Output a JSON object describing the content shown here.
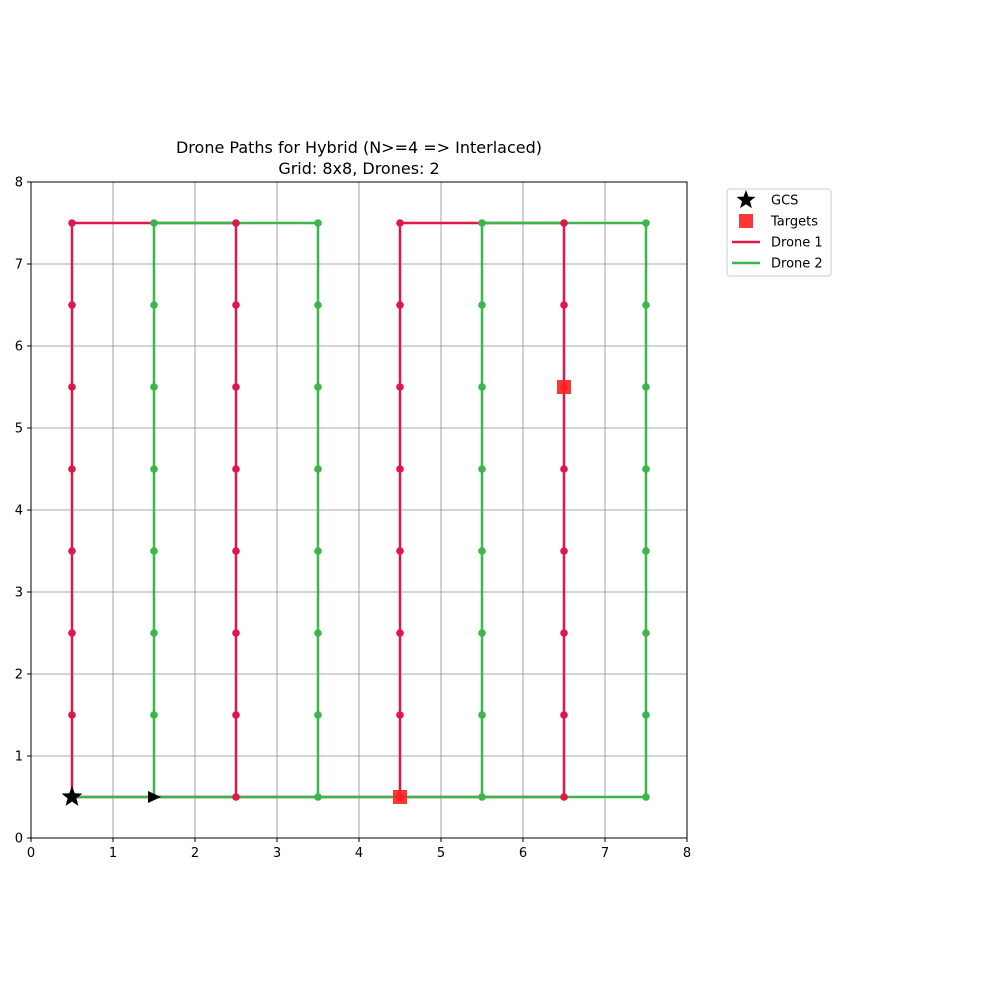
{
  "chart_data": {
    "type": "line",
    "title_lines": [
      "Drone Paths for Hybrid (N>=4 => Interlaced)",
      "Grid: 8x8, Drones: 2"
    ],
    "xlabel": "",
    "ylabel": "",
    "xlim": [
      0,
      8
    ],
    "ylim": [
      0,
      8
    ],
    "xticks": [
      0,
      1,
      2,
      3,
      4,
      5,
      6,
      7,
      8
    ],
    "yticks": [
      0,
      1,
      2,
      3,
      4,
      5,
      6,
      7,
      8
    ],
    "grid": true,
    "legend_position": "outside-top-right",
    "gcs": {
      "label": "GCS",
      "x": 0.5,
      "y": 0.5,
      "marker": "star",
      "color": "#000000"
    },
    "targets": {
      "label": "Targets",
      "color": "#ff2020",
      "points": [
        {
          "x": 4.5,
          "y": 0.5
        },
        {
          "x": 6.5,
          "y": 5.5
        }
      ]
    },
    "direction_marker": {
      "x": 1.5,
      "y": 0.5,
      "marker": "triangle-right",
      "color": "#000000"
    },
    "series": [
      {
        "name": "Drone 1",
        "color": "#e0174a",
        "path": [
          [
            0.5,
            0.5
          ],
          [
            0.5,
            7.5
          ],
          [
            2.5,
            7.5
          ],
          [
            2.5,
            0.5
          ],
          [
            4.5,
            0.5
          ],
          [
            4.5,
            7.5
          ],
          [
            6.5,
            7.5
          ],
          [
            6.5,
            0.5
          ],
          [
            4.5,
            0.5
          ],
          [
            0.5,
            0.5
          ]
        ],
        "waypoints": [
          [
            0.5,
            0.5
          ],
          [
            0.5,
            1.5
          ],
          [
            0.5,
            2.5
          ],
          [
            0.5,
            3.5
          ],
          [
            0.5,
            4.5
          ],
          [
            0.5,
            5.5
          ],
          [
            0.5,
            6.5
          ],
          [
            0.5,
            7.5
          ],
          [
            2.5,
            7.5
          ],
          [
            2.5,
            6.5
          ],
          [
            2.5,
            5.5
          ],
          [
            2.5,
            4.5
          ],
          [
            2.5,
            3.5
          ],
          [
            2.5,
            2.5
          ],
          [
            2.5,
            1.5
          ],
          [
            2.5,
            0.5
          ],
          [
            4.5,
            0.5
          ],
          [
            4.5,
            1.5
          ],
          [
            4.5,
            2.5
          ],
          [
            4.5,
            3.5
          ],
          [
            4.5,
            4.5
          ],
          [
            4.5,
            5.5
          ],
          [
            4.5,
            6.5
          ],
          [
            4.5,
            7.5
          ],
          [
            6.5,
            7.5
          ],
          [
            6.5,
            6.5
          ],
          [
            6.5,
            5.5
          ],
          [
            6.5,
            4.5
          ],
          [
            6.5,
            3.5
          ],
          [
            6.5,
            2.5
          ],
          [
            6.5,
            1.5
          ],
          [
            6.5,
            0.5
          ]
        ]
      },
      {
        "name": "Drone 2",
        "color": "#3cb54a",
        "path": [
          [
            0.5,
            0.5
          ],
          [
            1.5,
            0.5
          ],
          [
            1.5,
            7.5
          ],
          [
            3.5,
            7.5
          ],
          [
            3.5,
            0.5
          ],
          [
            5.5,
            0.5
          ],
          [
            5.5,
            7.5
          ],
          [
            7.5,
            7.5
          ],
          [
            7.5,
            0.5
          ],
          [
            0.5,
            0.5
          ]
        ],
        "waypoints": [
          [
            1.5,
            1.5
          ],
          [
            1.5,
            2.5
          ],
          [
            1.5,
            3.5
          ],
          [
            1.5,
            4.5
          ],
          [
            1.5,
            5.5
          ],
          [
            1.5,
            6.5
          ],
          [
            1.5,
            7.5
          ],
          [
            3.5,
            7.5
          ],
          [
            3.5,
            6.5
          ],
          [
            3.5,
            5.5
          ],
          [
            3.5,
            4.5
          ],
          [
            3.5,
            3.5
          ],
          [
            3.5,
            2.5
          ],
          [
            3.5,
            1.5
          ],
          [
            3.5,
            0.5
          ],
          [
            5.5,
            0.5
          ],
          [
            5.5,
            1.5
          ],
          [
            5.5,
            2.5
          ],
          [
            5.5,
            3.5
          ],
          [
            5.5,
            4.5
          ],
          [
            5.5,
            5.5
          ],
          [
            5.5,
            6.5
          ],
          [
            5.5,
            7.5
          ],
          [
            7.5,
            7.5
          ],
          [
            7.5,
            6.5
          ],
          [
            7.5,
            5.5
          ],
          [
            7.5,
            4.5
          ],
          [
            7.5,
            3.5
          ],
          [
            7.5,
            2.5
          ],
          [
            7.5,
            1.5
          ],
          [
            7.5,
            0.5
          ]
        ]
      }
    ]
  }
}
